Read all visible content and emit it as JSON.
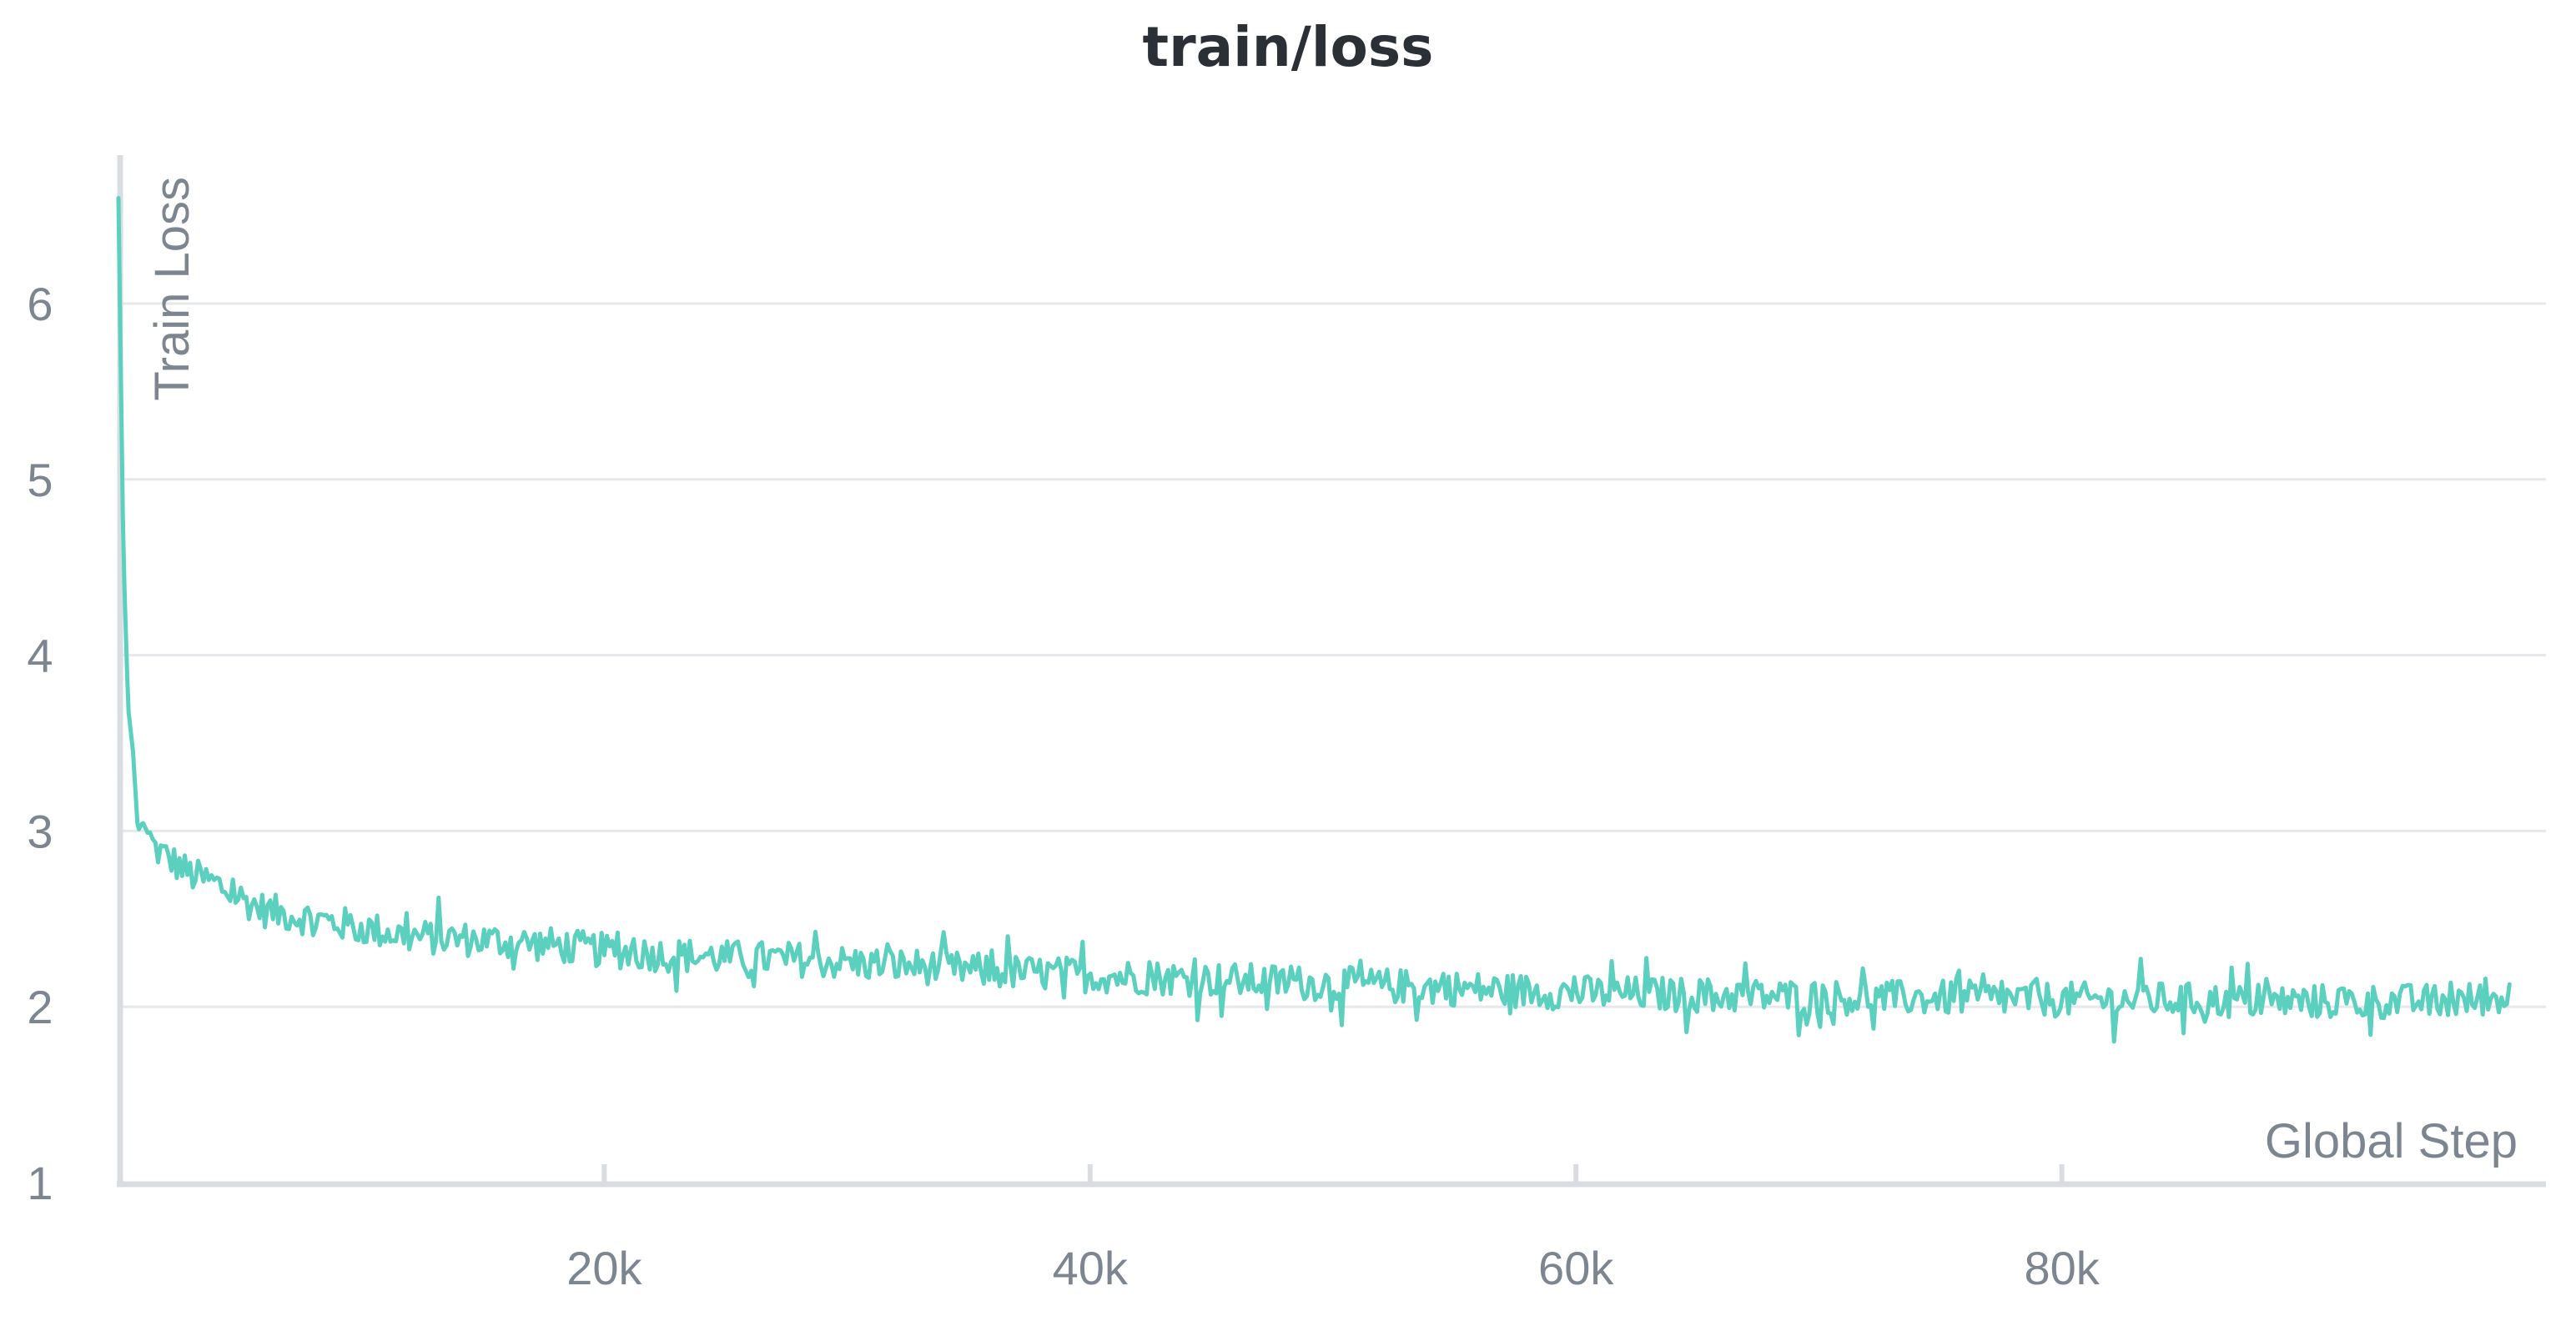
{
  "chart_data": {
    "type": "line",
    "title": "train/loss",
    "xlabel": "Global Step",
    "ylabel": "Train Loss",
    "xlim": [
      0,
      100000
    ],
    "ylim": [
      1,
      6.85
    ],
    "x_ticks": [
      20000,
      40000,
      60000,
      80000
    ],
    "x_tick_labels": [
      "20k",
      "40k",
      "60k",
      "80k"
    ],
    "y_ticks": [
      1,
      2,
      3,
      4,
      5,
      6
    ],
    "y_tick_labels": [
      "1",
      "2",
      "3",
      "4",
      "5",
      "6"
    ],
    "grid": true,
    "colors": {
      "line": "#5bd0bf",
      "grid": "#e6e8eb",
      "axis": "#d9dce0",
      "text": "#7d8590"
    },
    "series": [
      {
        "x": [
          0,
          200,
          400,
          600,
          800,
          1000,
          1500,
          2000,
          2500,
          3000,
          4000,
          5000,
          6000,
          8000,
          10000,
          12000,
          15000,
          18000,
          20000,
          22000,
          25000,
          28000,
          30000,
          33000,
          36000,
          40000,
          44000,
          48000,
          52000,
          56000,
          60000,
          64000,
          68000,
          72000,
          76000,
          80000,
          84000,
          88000,
          92000,
          96000,
          98500
        ],
        "values": [
          6.6,
          4.6,
          3.7,
          3.45,
          3.0,
          3.05,
          2.9,
          2.85,
          2.8,
          2.75,
          2.7,
          2.62,
          2.55,
          2.5,
          2.45,
          2.4,
          2.38,
          2.35,
          2.32,
          2.3,
          2.28,
          2.27,
          2.25,
          2.23,
          2.2,
          2.18,
          2.16,
          2.14,
          2.12,
          2.1,
          2.08,
          2.07,
          2.06,
          2.05,
          2.05,
          2.04,
          2.04,
          2.03,
          2.03,
          2.03,
          2.06
        ],
        "noise": 0.1
      }
    ]
  }
}
